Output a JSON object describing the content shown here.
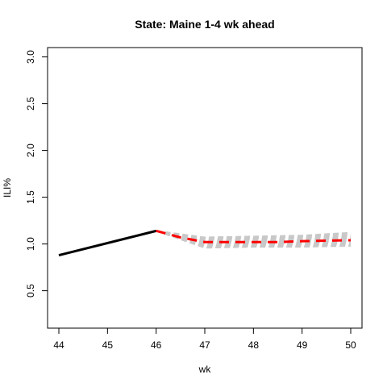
{
  "chart_data": {
    "type": "line",
    "title": "State: Maine 1-4 wk ahead",
    "xlabel": "wk",
    "ylabel": "ILI%",
    "xlim": [
      44,
      50
    ],
    "ylim": [
      0.1,
      3.1
    ],
    "x_ticks": [
      "44",
      "45",
      "46",
      "47",
      "48",
      "49",
      "50"
    ],
    "y_ticks": [
      "0.5",
      "1.0",
      "1.5",
      "2.0",
      "2.5",
      "3.0"
    ],
    "grid": false,
    "legend": "none",
    "series": [
      {
        "role": "observed",
        "color": "#000000",
        "style": "solid",
        "x": [
          44,
          46
        ],
        "y": [
          0.88,
          1.14
        ]
      },
      {
        "role": "forecast-mean",
        "color": "#ff0000",
        "style": "dashed",
        "x": [
          46,
          46.5,
          47,
          47.5,
          48,
          48.5,
          49,
          49.5,
          50
        ],
        "y": [
          1.14,
          1.07,
          1.02,
          1.02,
          1.02,
          1.02,
          1.03,
          1.035,
          1.04
        ]
      },
      {
        "role": "forecast-samples",
        "color": "#c8c8c8",
        "style": "dashed",
        "x": [
          46,
          47,
          48,
          49,
          50
        ],
        "y_low": [
          1.14,
          0.96,
          0.97,
          0.97,
          0.98
        ],
        "y_high": [
          1.14,
          1.07,
          1.08,
          1.09,
          1.12
        ],
        "count": 10
      }
    ]
  }
}
